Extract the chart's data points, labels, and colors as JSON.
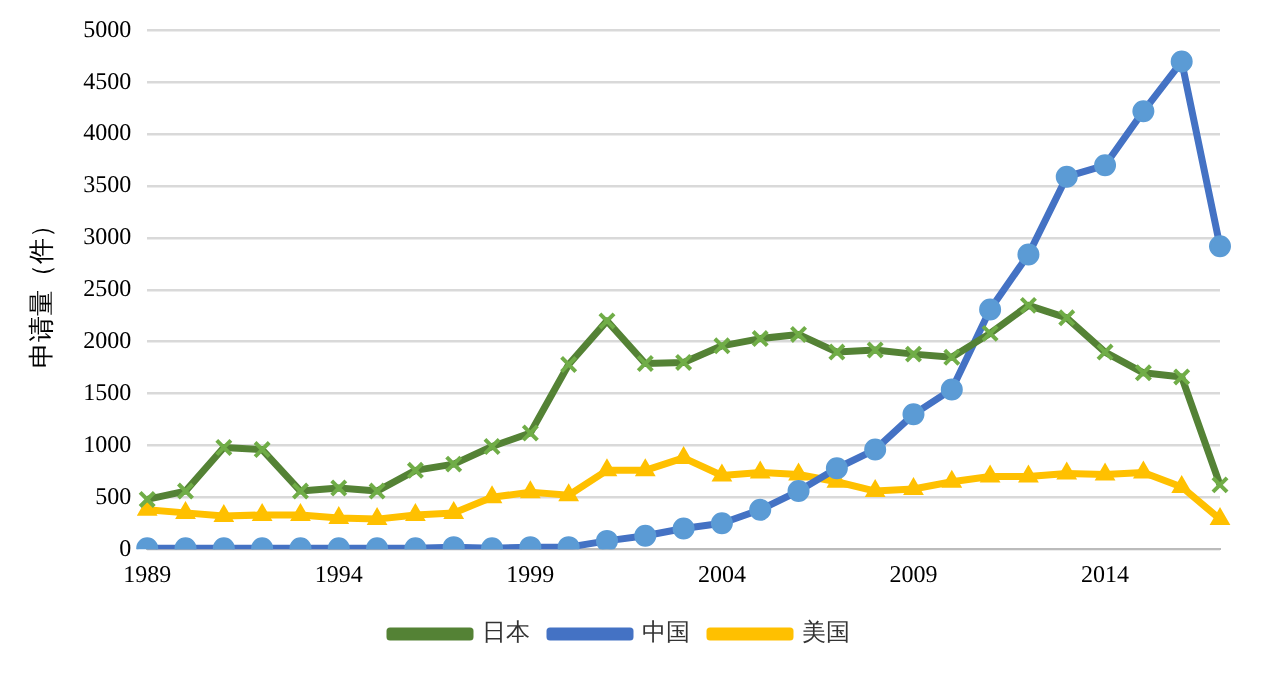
{
  "chart_data": {
    "type": "line",
    "ylabel": "申请量（件）",
    "categories": [
      "1989",
      null,
      null,
      null,
      null,
      "1994",
      null,
      null,
      null,
      null,
      "1999",
      null,
      null,
      null,
      null,
      "2004",
      null,
      null,
      null,
      null,
      "2009",
      null,
      null,
      null,
      null,
      "2014",
      null,
      null,
      null
    ],
    "series": [
      {
        "name": "日本",
        "color": "#548235",
        "marker": "cross",
        "values": [
          480,
          560,
          980,
          960,
          560,
          590,
          560,
          760,
          820,
          990,
          1120,
          1780,
          2200,
          1790,
          1800,
          1960,
          2030,
          2070,
          1900,
          1920,
          1880,
          1850,
          2080,
          2350,
          2230,
          1900,
          1700,
          1660,
          620
        ]
      },
      {
        "name": "中国",
        "color": "#4472c4",
        "marker": "circle",
        "values": [
          10,
          10,
          10,
          10,
          10,
          10,
          10,
          10,
          20,
          10,
          20,
          20,
          80,
          130,
          200,
          250,
          380,
          560,
          780,
          960,
          1300,
          1540,
          2310,
          2840,
          3590,
          3700,
          4220,
          4700,
          2920
        ]
      },
      {
        "name": "美国",
        "color": "#ffc000",
        "marker": "triangle",
        "values": [
          380,
          350,
          320,
          330,
          330,
          300,
          290,
          330,
          350,
          500,
          550,
          520,
          760,
          760,
          880,
          710,
          740,
          720,
          650,
          560,
          580,
          650,
          700,
          700,
          730,
          720,
          740,
          600,
          290
        ]
      }
    ],
    "ylim": [
      0,
      5000
    ],
    "yticks": [
      0,
      500,
      1000,
      1500,
      2000,
      2500,
      3000,
      3500,
      4000,
      4500,
      5000
    ],
    "grid": "y",
    "legend": "bottom"
  }
}
